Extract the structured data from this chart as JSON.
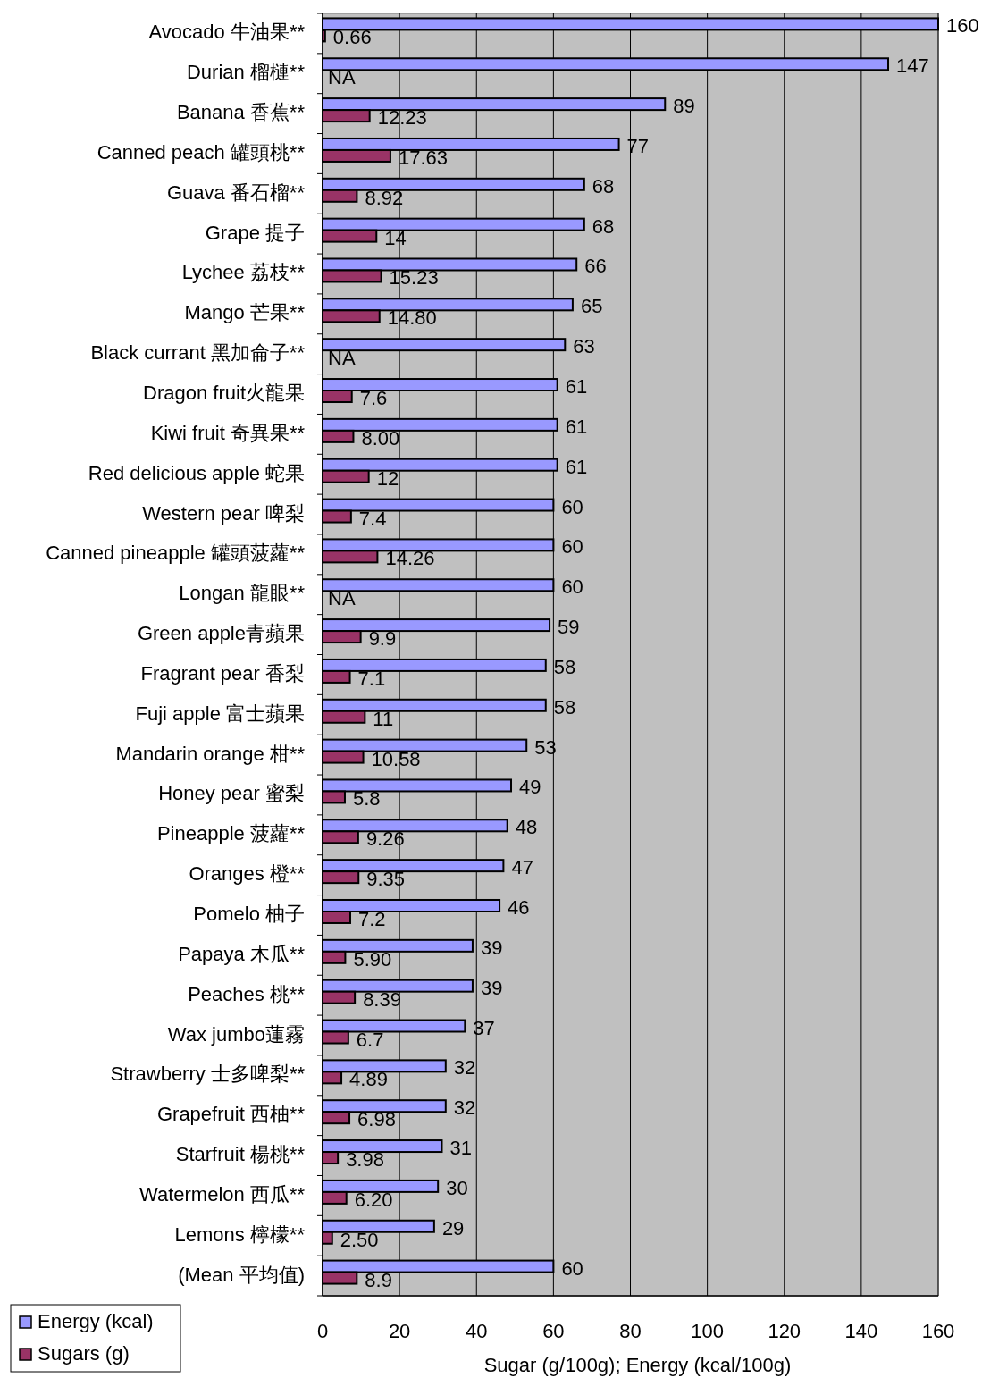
{
  "chart_data": {
    "type": "bar",
    "orientation": "horizontal",
    "xlabel": "Sugar (g/100g);  Energy (kcal/100g)",
    "categories": [
      "Avocado 牛油果**",
      "Durian 榴槤**",
      "Banana 香蕉**",
      "Canned peach 罐頭桃**",
      "Guava 番石榴**",
      "Grape 提子",
      "Lychee 荔枝**",
      "Mango 芒果**",
      "Black currant 黑加侖子**",
      "Dragon fruit火龍果",
      "Kiwi fruit 奇異果**",
      "Red delicious apple 蛇果",
      "Western pear 啤梨",
      "Canned pineapple 罐頭菠蘿**",
      "Longan 龍眼**",
      "Green apple青蘋果",
      "Fragrant pear 香梨",
      "Fuji apple 富士蘋果",
      "Mandarin orange 柑**",
      "Honey pear 蜜梨",
      "Pineapple 菠蘿**",
      "Oranges 橙**",
      "Pomelo 柚子",
      "Papaya 木瓜**",
      "Peaches 桃**",
      "Wax jumbo蓮霧",
      "Strawberry 士多啤梨**",
      "Grapefruit 西柚**",
      "Starfruit 楊桃**",
      "Watermelon 西瓜**",
      "Lemons 檸檬**",
      "(Mean 平均值)"
    ],
    "series": [
      {
        "name": "Energy (kcal)",
        "color": "#9999ff",
        "values": [
          160,
          147,
          89,
          77,
          68,
          68,
          66,
          65,
          63,
          61,
          61,
          61,
          60,
          60,
          60,
          59,
          58,
          58,
          53,
          49,
          48,
          47,
          46,
          39,
          39,
          37,
          32,
          32,
          31,
          30,
          29,
          60
        ],
        "value_labels": [
          "160",
          "147",
          "89",
          "77",
          "68",
          "68",
          "66",
          "65",
          "63",
          "61",
          "61",
          "61",
          "60",
          "60",
          "60",
          "59",
          "58",
          "58",
          "53",
          "49",
          "48",
          "47",
          "46",
          "39",
          "39",
          "37",
          "32",
          "32",
          "31",
          "30",
          "29",
          "60"
        ]
      },
      {
        "name": "Sugars (g)",
        "color": "#993366",
        "values": [
          0.66,
          null,
          12.23,
          17.63,
          8.92,
          14,
          15.23,
          14.8,
          null,
          7.6,
          8,
          12,
          7.4,
          14.26,
          null,
          9.9,
          7.1,
          11,
          10.58,
          5.8,
          9.26,
          9.35,
          7.2,
          5.9,
          8.39,
          6.7,
          4.89,
          6.98,
          3.98,
          6.2,
          2.5,
          8.9
        ],
        "value_labels": [
          "0.66",
          "NA",
          "12.23",
          "17.63",
          "8.92",
          "14",
          "15.23",
          "14.80",
          "NA",
          "7.6",
          "8.00",
          "12",
          "7.4",
          "14.26",
          "NA",
          "9.9",
          "7.1",
          "11",
          "10.58",
          "5.8",
          "9.26",
          "9.35",
          "7.2",
          "5.90",
          "8.39",
          "6.7",
          "4.89",
          "6.98",
          "3.98",
          "6.20",
          "2.50",
          "8.9"
        ]
      }
    ],
    "xlim": [
      0,
      160
    ],
    "xticks": [
      0,
      20,
      40,
      60,
      80,
      100,
      120,
      140,
      160
    ],
    "grid": "x",
    "legend": "bottom left"
  }
}
